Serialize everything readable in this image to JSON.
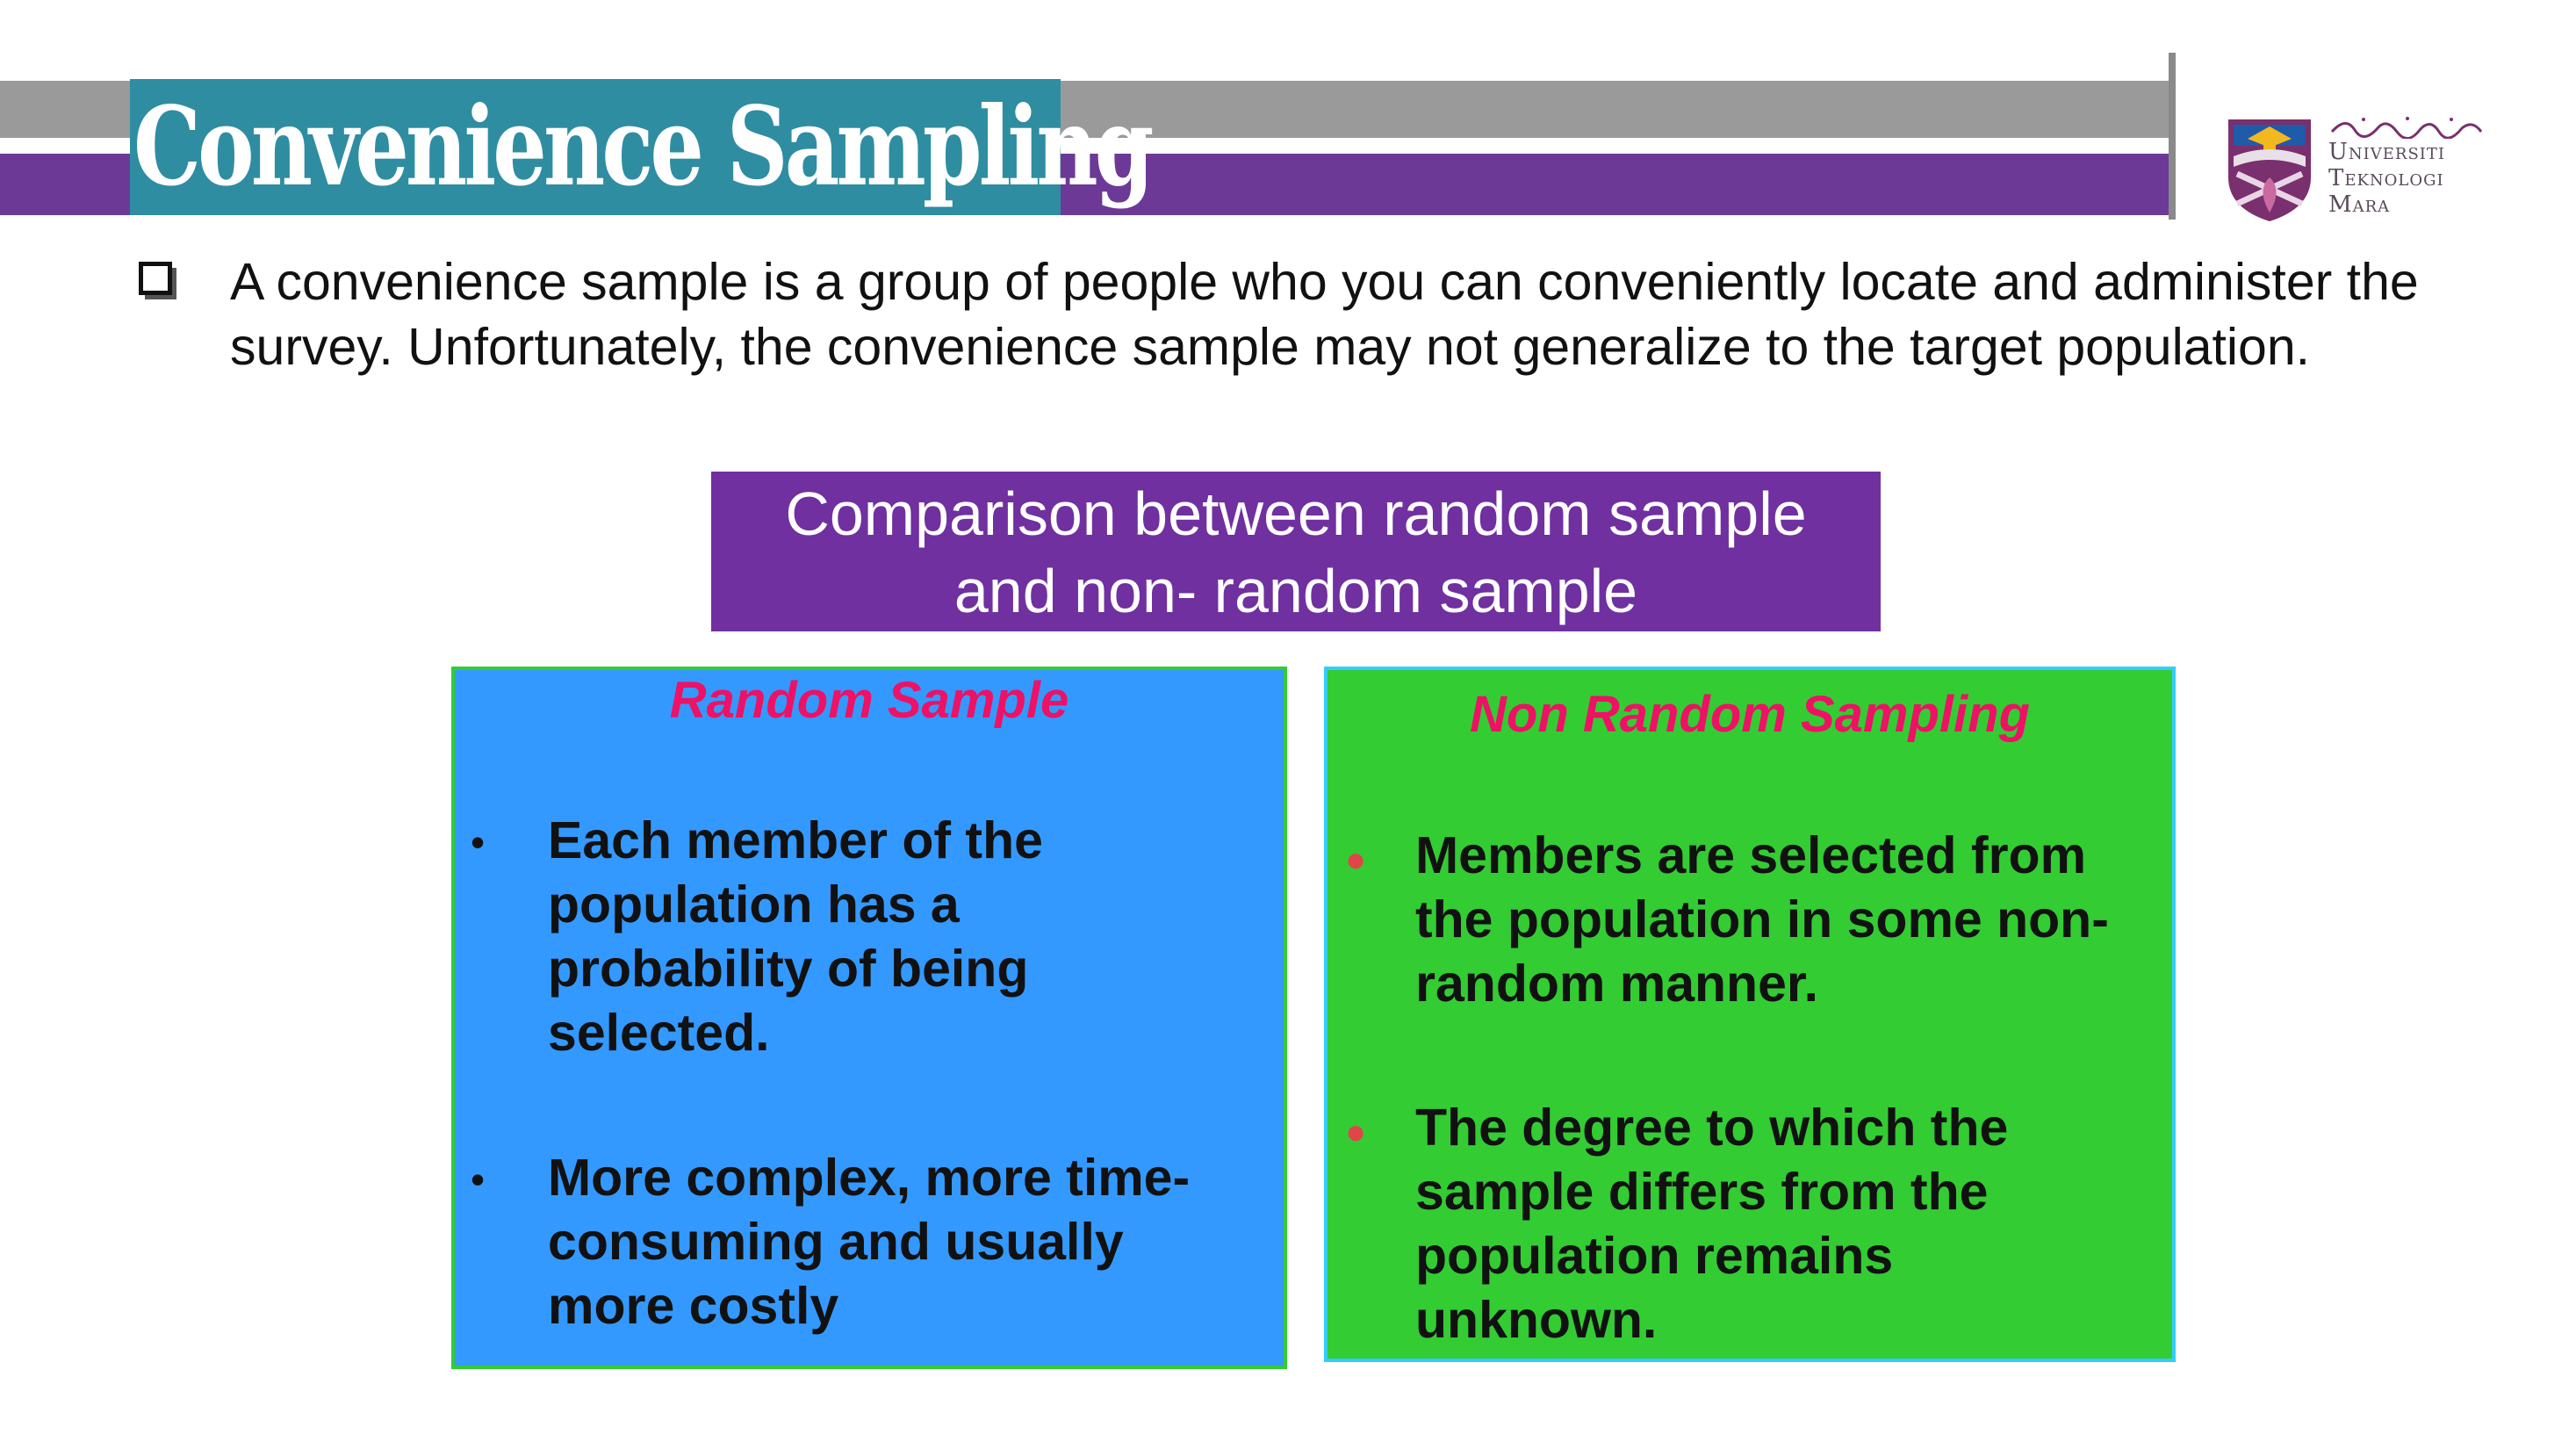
{
  "slide": {
    "title": "Convenience Sampling",
    "logo": {
      "name": "uitm-logo-icon",
      "line1": "Universiti",
      "line2": "Teknologi",
      "line3": "Mara"
    },
    "intro": {
      "bullet_icon": "checkbox-bullet-icon",
      "text": "A convenience sample is a group of people who you can conveniently locate and administer the  survey. Unfortunately, the convenience sample  may not generalize to the target population."
    },
    "comparison": {
      "line1": "Comparison between random sample",
      "line2": "and non- random sample",
      "color": "#7030a0"
    },
    "random": {
      "heading": "Random Sample",
      "color": "#3399ff",
      "items": [
        "Each member of the population has a probability of being selected.",
        "More complex, more time-consuming and usually more costly"
      ]
    },
    "non_random": {
      "heading": "Non Random Sampling",
      "color": "#33cc33",
      "items": [
        "Members are selected from the population in some non-random manner.",
        "The degree to which the sample differs from the population remains unknown."
      ]
    }
  }
}
